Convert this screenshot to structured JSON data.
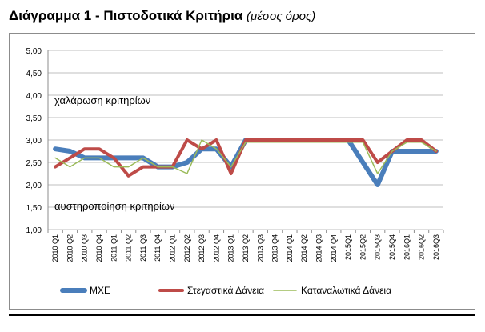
{
  "title": {
    "main": "Διάγραμμα 1 - Πιστοδοτικά Κριτήρια",
    "sub": "(μέσος όρος)"
  },
  "chart_data": {
    "type": "line",
    "x": [
      "2010 Q1",
      "2010 Q2",
      "2010 Q3",
      "2010 Q4",
      "2011 Q1",
      "2011 Q2",
      "2011 Q3",
      "2011 Q4",
      "2012 Q1",
      "2012 Q2",
      "2012 Q3",
      "2012 Q4",
      "2013 Q1",
      "2013 Q2",
      "2013 Q3",
      "2013 Q4",
      "2014 Q1",
      "2014 Q2",
      "2014 Q3",
      "2014 Q4",
      "2015Q1",
      "2015Q2",
      "2015Q3",
      "2015Q4",
      "2016Q1",
      "2016Q2",
      "2016Q3"
    ],
    "y_ticks": [
      "5,00",
      "4,50",
      "4,00",
      "3,50",
      "3,00",
      "2,50",
      "2,00",
      "1,50",
      "1,00"
    ],
    "ylim": [
      1.0,
      5.0
    ],
    "grid": true,
    "legend_position": "bottom",
    "annotations": [
      "χαλάρωση κριτηρίων",
      "αυστηροποίηση κριτηρίων"
    ],
    "series": [
      {
        "name": "ΜΧΕ",
        "color": "#4a7ebb",
        "values": [
          2.8,
          2.75,
          2.6,
          2.6,
          2.6,
          2.6,
          2.6,
          2.4,
          2.4,
          2.5,
          2.8,
          2.8,
          2.4,
          3.0,
          3.0,
          3.0,
          3.0,
          3.0,
          3.0,
          3.0,
          3.0,
          2.5,
          2.0,
          2.75,
          2.75,
          2.75,
          2.75
        ]
      },
      {
        "name": "Στεγαστικά Δάνεια",
        "color": "#be4b48",
        "values": [
          2.4,
          2.6,
          2.8,
          2.8,
          2.6,
          2.2,
          2.4,
          2.4,
          2.4,
          3.0,
          2.8,
          3.0,
          2.25,
          3.0,
          3.0,
          3.0,
          3.0,
          3.0,
          3.0,
          3.0,
          3.0,
          3.0,
          2.5,
          2.75,
          3.0,
          3.0,
          2.75
        ]
      },
      {
        "name": "Καταναλωτικά Δάνεια",
        "color": "#9bbb59",
        "values": [
          2.6,
          2.4,
          2.6,
          2.6,
          2.4,
          2.4,
          2.6,
          2.4,
          2.4,
          2.25,
          3.0,
          2.8,
          2.4,
          2.95,
          2.95,
          2.95,
          2.95,
          2.95,
          2.95,
          2.95,
          2.95,
          2.95,
          2.25,
          2.75,
          2.95,
          2.95,
          2.75
        ]
      }
    ]
  }
}
